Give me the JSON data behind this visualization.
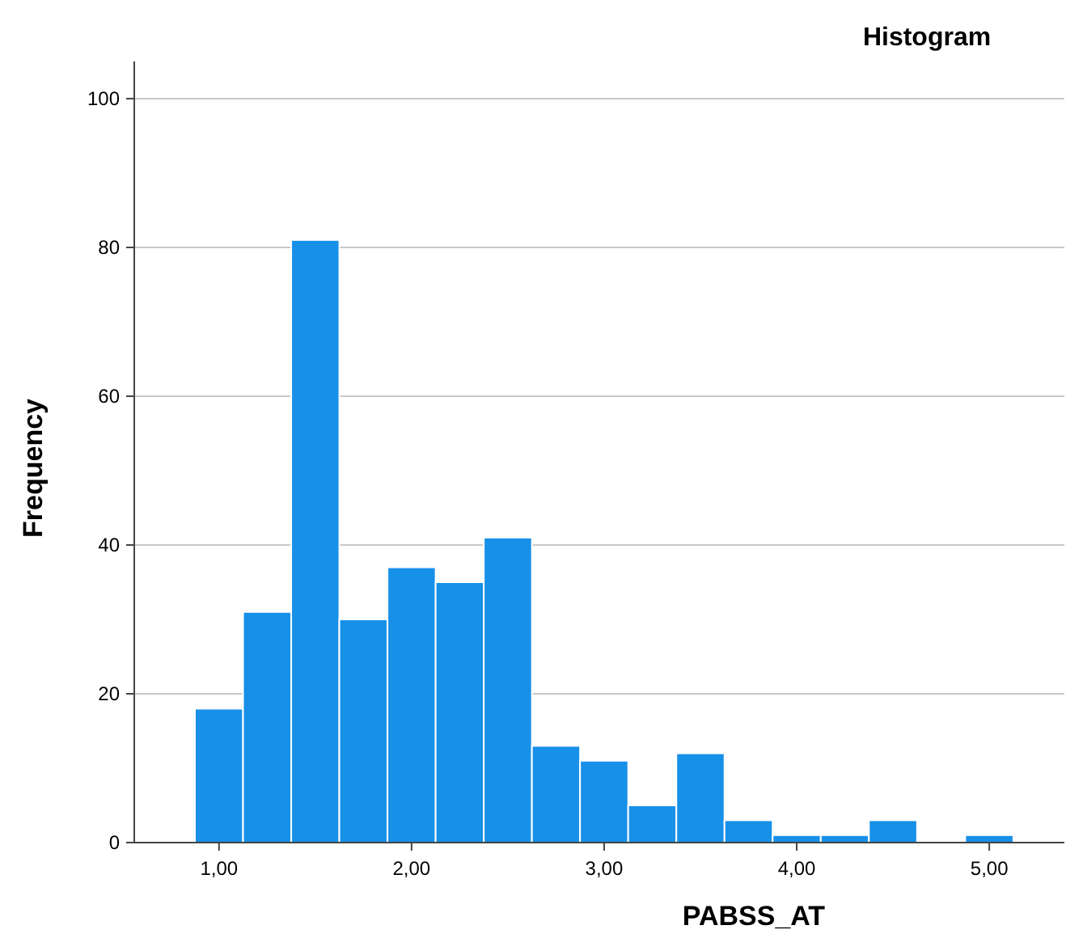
{
  "chart_data": {
    "type": "histogram",
    "title": "Histogram",
    "xlabel": "PABSS_AT",
    "ylabel": "Frequency",
    "bins": [
      0.875,
      1.125,
      1.375,
      1.625,
      1.875,
      2.125,
      2.375,
      2.625,
      2.875,
      3.125,
      3.375,
      3.625,
      3.875,
      4.125,
      4.375,
      4.625,
      4.875,
      5.125
    ],
    "values": [
      18,
      31,
      81,
      30,
      37,
      35,
      41,
      13,
      11,
      5,
      12,
      3,
      1,
      1,
      3,
      0,
      1
    ],
    "color": "#1790e8",
    "xlim": [
      0.56,
      5.39
    ],
    "xticks": [
      {
        "value": 1,
        "label": "1,00"
      },
      {
        "value": 2,
        "label": "2,00"
      },
      {
        "value": 3,
        "label": "3,00"
      },
      {
        "value": 4,
        "label": "4,00"
      },
      {
        "value": 5,
        "label": "5,00"
      }
    ],
    "ylim": [
      0,
      105
    ],
    "yticks": [
      0,
      20,
      40,
      60,
      80,
      100
    ],
    "grid": "y"
  }
}
